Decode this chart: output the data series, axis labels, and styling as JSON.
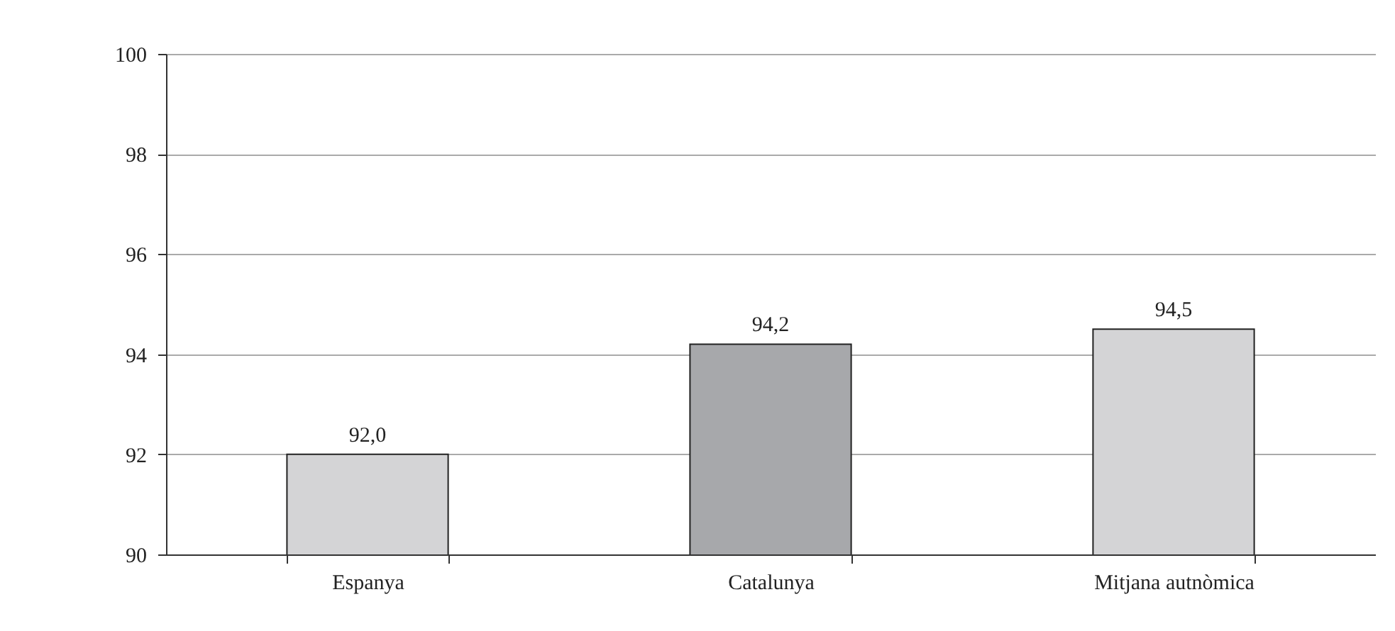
{
  "chart_data": {
    "type": "bar",
    "categories": [
      "Espanya",
      "Catalunya",
      "Mitjana autnòmica"
    ],
    "values": [
      92.0,
      94.2,
      94.5
    ],
    "colors": [
      "#d4d4d6",
      "#a7a8ab",
      "#d4d4d6"
    ],
    "value_labels": [
      "92,0",
      "94,2",
      "94,5"
    ],
    "ylim": [
      90,
      100
    ],
    "yticks": [
      90,
      92,
      94,
      96,
      98,
      100
    ],
    "grid": "y"
  }
}
